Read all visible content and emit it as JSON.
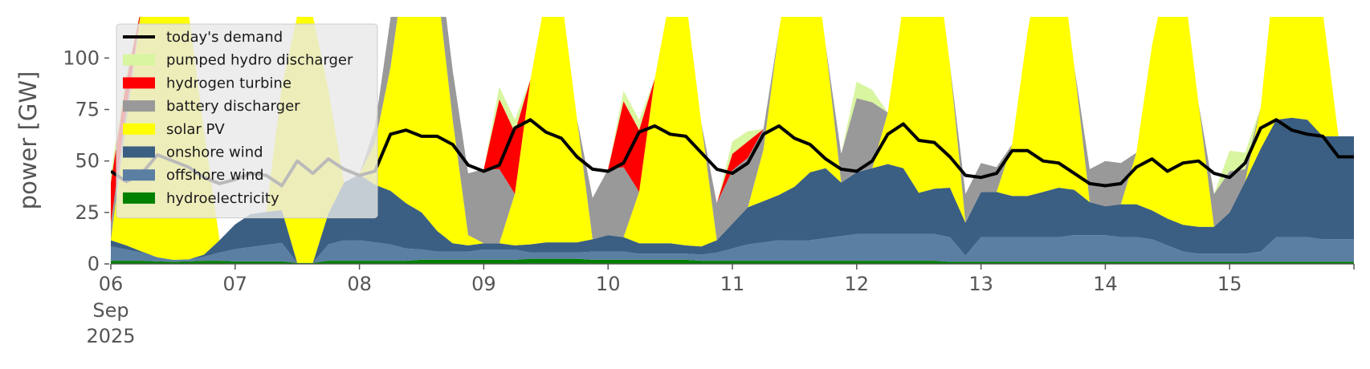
{
  "chart_data": {
    "type": "area",
    "title": "",
    "xlabel": "",
    "ylabel": "power [GW]",
    "ylim": [
      0,
      120
    ],
    "yticks": [
      0,
      25,
      50,
      75,
      100
    ],
    "xlim": [
      "2025-09-06T00:00",
      "2025-09-16T00:00"
    ],
    "xticks": [
      {
        "t": "2025-09-06T00:00",
        "label": "06",
        "sublabels": [
          "Sep",
          "2025"
        ]
      },
      {
        "t": "2025-09-07T00:00",
        "label": "07"
      },
      {
        "t": "2025-09-08T00:00",
        "label": "08"
      },
      {
        "t": "2025-09-09T00:00",
        "label": "09"
      },
      {
        "t": "2025-09-10T00:00",
        "label": "10"
      },
      {
        "t": "2025-09-11T00:00",
        "label": "11"
      },
      {
        "t": "2025-09-12T00:00",
        "label": "12"
      },
      {
        "t": "2025-09-13T00:00",
        "label": "13"
      },
      {
        "t": "2025-09-14T00:00",
        "label": "14"
      },
      {
        "t": "2025-09-15T00:00",
        "label": "15"
      }
    ],
    "grid": false,
    "legend_position": "upper-left",
    "stack_order": [
      "hydroelectricity",
      "offshore wind",
      "onshore wind",
      "solar PV",
      "battery discharger",
      "hydrogen turbine",
      "pumped hydro discharger"
    ],
    "x": [
      "2025-09-06T00:00",
      "2025-09-06T03:00",
      "2025-09-06T06:00",
      "2025-09-06T09:00",
      "2025-09-06T12:00",
      "2025-09-06T15:00",
      "2025-09-06T18:00",
      "2025-09-06T21:00",
      "2025-09-07T00:00",
      "2025-09-07T03:00",
      "2025-09-07T06:00",
      "2025-09-07T09:00",
      "2025-09-07T12:00",
      "2025-09-07T15:00",
      "2025-09-07T18:00",
      "2025-09-07T21:00",
      "2025-09-08T00:00",
      "2025-09-08T03:00",
      "2025-09-08T06:00",
      "2025-09-08T09:00",
      "2025-09-08T12:00",
      "2025-09-08T15:00",
      "2025-09-08T18:00",
      "2025-09-08T21:00",
      "2025-09-09T00:00",
      "2025-09-09T03:00",
      "2025-09-09T06:00",
      "2025-09-09T09:00",
      "2025-09-09T12:00",
      "2025-09-09T15:00",
      "2025-09-09T18:00",
      "2025-09-09T21:00",
      "2025-09-10T00:00",
      "2025-09-10T03:00",
      "2025-09-10T06:00",
      "2025-09-10T09:00",
      "2025-09-10T12:00",
      "2025-09-10T15:00",
      "2025-09-10T18:00",
      "2025-09-10T21:00",
      "2025-09-11T00:00",
      "2025-09-11T03:00",
      "2025-09-11T06:00",
      "2025-09-11T09:00",
      "2025-09-11T12:00",
      "2025-09-11T15:00",
      "2025-09-11T18:00",
      "2025-09-11T21:00",
      "2025-09-12T00:00",
      "2025-09-12T03:00",
      "2025-09-12T06:00",
      "2025-09-12T09:00",
      "2025-09-12T12:00",
      "2025-09-12T15:00",
      "2025-09-12T18:00",
      "2025-09-12T21:00",
      "2025-09-13T00:00",
      "2025-09-13T03:00",
      "2025-09-13T06:00",
      "2025-09-13T09:00",
      "2025-09-13T12:00",
      "2025-09-13T15:00",
      "2025-09-13T18:00",
      "2025-09-13T21:00",
      "2025-09-14T00:00",
      "2025-09-14T03:00",
      "2025-09-14T06:00",
      "2025-09-14T09:00",
      "2025-09-14T12:00",
      "2025-09-14T15:00",
      "2025-09-14T18:00",
      "2025-09-14T21:00",
      "2025-09-15T00:00",
      "2025-09-15T03:00",
      "2025-09-15T06:00",
      "2025-09-15T09:00",
      "2025-09-15T12:00",
      "2025-09-15T15:00",
      "2025-09-15T18:00",
      "2025-09-15T21:00",
      "2025-09-16T00:00"
    ],
    "series": [
      {
        "name": "hydroelectricity",
        "color": "#008000",
        "values": [
          1.5,
          1.5,
          1.5,
          1.2,
          1,
          1.2,
          1.5,
          1.5,
          1.2,
          1.2,
          1.2,
          1.2,
          0.5,
          0.5,
          1.5,
          1.5,
          1.5,
          1.5,
          1.5,
          1.5,
          2,
          2,
          2,
          2,
          2,
          2,
          2,
          2.5,
          2.5,
          2.5,
          2.5,
          2,
          2,
          2,
          2,
          2,
          2,
          2,
          1.5,
          1.5,
          1.5,
          1.5,
          1.5,
          1.5,
          1.5,
          1.5,
          1.5,
          1.5,
          1.5,
          1.5,
          1.5,
          1.5,
          1.5,
          1.5,
          1,
          1,
          1,
          1,
          1,
          1,
          1,
          1,
          1,
          1,
          1,
          1,
          1,
          1,
          1,
          1,
          1,
          1,
          1,
          1,
          1,
          1,
          1,
          1,
          1,
          1,
          1
        ]
      },
      {
        "name": "offshore wind",
        "color": "#5b7fa3",
        "values": [
          7,
          5.5,
          4,
          2,
          1,
          1,
          2,
          4,
          6,
          7,
          8,
          9,
          0,
          0,
          8,
          10,
          10,
          9,
          8,
          6,
          5,
          4,
          4,
          4,
          5,
          5,
          5,
          3,
          3,
          3,
          3,
          4,
          4,
          4,
          3,
          3,
          3,
          3,
          3,
          4,
          6,
          8,
          9,
          10,
          10,
          10,
          11,
          12,
          13,
          13,
          13,
          13,
          13,
          13,
          12,
          3,
          12,
          12,
          12,
          12,
          12,
          12,
          13,
          13,
          13,
          12,
          12,
          11,
          8,
          5,
          4,
          4,
          4,
          4,
          5,
          12,
          12,
          12,
          11,
          11,
          11
        ]
      },
      {
        "name": "onshore wind",
        "color": "#3b5f82",
        "values": [
          3,
          2,
          0.5,
          0,
          0,
          0,
          1,
          6,
          12,
          16,
          16,
          16,
          0,
          0,
          15,
          28,
          32,
          28,
          26,
          22,
          18,
          10,
          4,
          3,
          3,
          3,
          2,
          4,
          5,
          5,
          5,
          6,
          8,
          7,
          5,
          5,
          5,
          4,
          4,
          6,
          12,
          18,
          20,
          22,
          26,
          33,
          34,
          26,
          30,
          32,
          34,
          32,
          20,
          22,
          24,
          16,
          22,
          22,
          20,
          20,
          22,
          24,
          22,
          16,
          14,
          16,
          16,
          14,
          13,
          13,
          13,
          13,
          20,
          35,
          50,
          57,
          58,
          57,
          50,
          50,
          50
        ]
      },
      {
        "name": "solar PV",
        "color": "#ffff00",
        "values": [
          0,
          60,
          120,
          120,
          120,
          120,
          60,
          0,
          0,
          0,
          0,
          60,
          120,
          120,
          60,
          0,
          0,
          20,
          60,
          120,
          120,
          120,
          60,
          5,
          0,
          0,
          25,
          80,
          120,
          120,
          60,
          0,
          0,
          0,
          25,
          80,
          120,
          120,
          60,
          0,
          0,
          0,
          25,
          80,
          120,
          120,
          60,
          0,
          0,
          0,
          25,
          80,
          120,
          120,
          60,
          0,
          0,
          0,
          25,
          80,
          120,
          120,
          60,
          0,
          0,
          0,
          25,
          80,
          120,
          120,
          60,
          0,
          0,
          0,
          20,
          80,
          120,
          120,
          60,
          0,
          0
        ]
      },
      {
        "name": "battery discharger",
        "color": "#999999",
        "values": [
          8,
          6,
          0,
          0,
          0,
          0,
          0,
          0,
          0,
          0,
          0,
          0,
          0,
          0,
          0,
          0,
          0,
          8,
          24,
          20,
          18,
          20,
          24,
          30,
          36,
          36,
          0,
          0,
          0,
          0,
          0,
          20,
          32,
          34,
          0,
          0,
          0,
          0,
          0,
          18,
          26,
          24,
          10,
          0,
          0,
          0,
          0,
          14,
          36,
          32,
          0,
          0,
          0,
          0,
          0,
          14,
          14,
          12,
          0,
          0,
          0,
          0,
          0,
          16,
          22,
          20,
          0,
          0,
          0,
          0,
          0,
          16,
          20,
          6,
          0,
          0,
          0,
          0,
          0,
          0,
          0
        ]
      },
      {
        "name": "hydrogen turbine",
        "color": "#ff0000",
        "values": [
          20,
          14,
          0,
          0,
          0,
          0,
          0,
          0,
          0,
          0,
          0,
          0,
          0,
          0,
          0,
          0,
          0,
          0,
          0,
          0,
          0,
          0,
          0,
          0,
          0,
          34,
          30,
          0,
          0,
          0,
          0,
          0,
          0,
          32,
          30,
          0,
          0,
          0,
          0,
          0,
          8,
          8,
          0,
          0,
          0,
          0,
          0,
          0,
          0,
          0,
          0,
          0,
          0,
          0,
          0,
          0,
          0,
          0,
          0,
          0,
          0,
          0,
          0,
          0,
          0,
          0,
          0,
          0,
          0,
          0,
          0,
          0,
          0,
          0,
          0,
          0,
          0,
          0,
          0,
          0,
          0
        ]
      },
      {
        "name": "pumped hydro discharger",
        "color": "#d8f5a0",
        "values": [
          4,
          4,
          0,
          0,
          0,
          0,
          0,
          0,
          0,
          0,
          0,
          0,
          0,
          0,
          0,
          0,
          0,
          0,
          0,
          0,
          0,
          0,
          0,
          0,
          0,
          6,
          6,
          0,
          0,
          0,
          0,
          0,
          0,
          5,
          5,
          0,
          0,
          0,
          0,
          0,
          6,
          5,
          0,
          0,
          0,
          0,
          0,
          0,
          8,
          6,
          0,
          0,
          0,
          0,
          0,
          0,
          0,
          0,
          0,
          0,
          0,
          0,
          0,
          0,
          0,
          0,
          0,
          0,
          0,
          0,
          0,
          0,
          10,
          8,
          0,
          0,
          0,
          0,
          0,
          0,
          0
        ]
      },
      {
        "name": "today's demand",
        "color": "#000000",
        "kind": "line",
        "values": [
          45,
          40,
          44,
          53,
          50,
          47,
          42,
          39,
          41,
          44,
          43,
          38,
          50,
          44,
          51,
          46,
          43,
          45,
          63,
          65,
          62,
          62,
          58,
          48,
          45,
          48,
          66,
          70,
          64,
          61,
          52,
          46,
          45,
          49,
          64,
          67,
          63,
          62,
          54,
          46,
          44,
          49,
          63,
          67,
          61,
          58,
          51,
          46,
          45,
          50,
          63,
          68,
          60,
          59,
          52,
          43,
          42,
          44,
          55,
          55,
          50,
          49,
          44,
          39,
          38,
          39,
          47,
          51,
          45,
          49,
          50,
          44,
          42,
          49,
          66,
          70,
          65,
          63,
          62,
          52,
          52
        ]
      }
    ],
    "legend": [
      "today's demand",
      "pumped hydro discharger",
      "hydrogen turbine",
      "battery discharger",
      "solar PV",
      "onshore wind",
      "offshore wind",
      "hydroelectricity"
    ]
  }
}
